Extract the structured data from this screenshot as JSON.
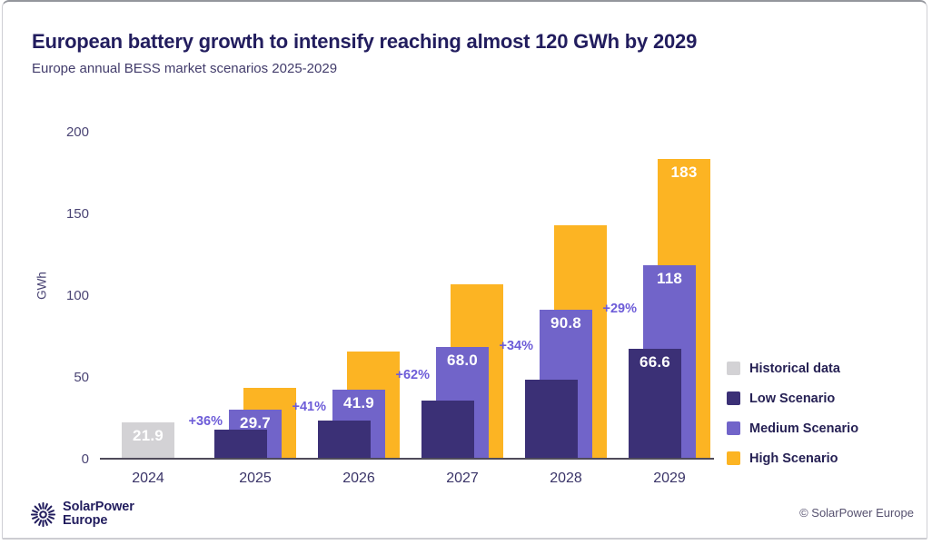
{
  "page": {
    "title": "European battery growth to intensify reaching almost 120 GWh by 2029",
    "subtitle": "Europe annual BESS market scenarios 2025-2029"
  },
  "chart_data": {
    "type": "bar",
    "title": "European battery growth to intensify reaching almost 120 GWh by 2029",
    "subtitle": "Europe annual BESS market scenarios 2025-2029",
    "xlabel": "",
    "ylabel": "GWh",
    "ylim": [
      0,
      200
    ],
    "yticks": [
      0,
      50,
      100,
      150,
      200
    ],
    "grid": false,
    "legend_position": "right",
    "categories": [
      "2024",
      "2025",
      "2026",
      "2027",
      "2028",
      "2029"
    ],
    "series": [
      {
        "name": "Historical data",
        "color": "#d3d2d5",
        "values": [
          21.9,
          null,
          null,
          null,
          null,
          null
        ],
        "labels": [
          "21.9",
          null,
          null,
          null,
          null,
          null
        ]
      },
      {
        "name": "Low Scenario",
        "color": "#3b3076",
        "values": [
          null,
          17,
          23,
          35,
          48,
          66.6
        ],
        "labels": [
          null,
          null,
          null,
          null,
          null,
          "66.6"
        ]
      },
      {
        "name": "Medium Scenario",
        "color": "#7164c9",
        "values": [
          null,
          29.7,
          41.9,
          68.0,
          90.8,
          118
        ],
        "labels": [
          null,
          "29.7",
          "41.9",
          "68.0",
          "90.8",
          "118"
        ]
      },
      {
        "name": "High Scenario",
        "color": "#fcb423",
        "values": [
          null,
          43,
          65,
          106,
          142,
          183
        ],
        "labels": [
          null,
          null,
          null,
          null,
          null,
          "183"
        ]
      }
    ],
    "growth_annotations": [
      {
        "category": "2025",
        "text": "+36%"
      },
      {
        "category": "2026",
        "text": "+41%"
      },
      {
        "category": "2027",
        "text": "+62%"
      },
      {
        "category": "2028",
        "text": "+34%"
      },
      {
        "category": "2029",
        "text": "+29%"
      }
    ]
  },
  "footer": {
    "logo_line1": "SolarPower",
    "logo_line2": "Europe",
    "copyright": "© SolarPower Europe"
  }
}
